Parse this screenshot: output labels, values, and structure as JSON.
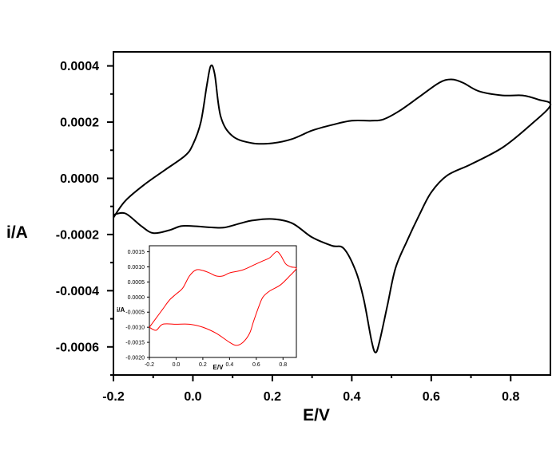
{
  "chart_data": [
    {
      "type": "line",
      "title": "",
      "xlabel": "E/V",
      "ylabel": "i/A",
      "xlim": [
        -0.2,
        0.9
      ],
      "ylim": [
        -0.0007,
        0.00045
      ],
      "x_ticks": [
        -0.2,
        0.0,
        0.2,
        0.4,
        0.6,
        0.8
      ],
      "x_tick_labels": [
        "-0.2",
        "0.0",
        "0.2",
        "0.4",
        "0.6",
        "0.8"
      ],
      "y_ticks": [
        0.0004,
        0.0002,
        0.0,
        -0.0002,
        -0.0004,
        -0.0006
      ],
      "y_tick_labels": [
        "0.0004",
        "0.0002",
        "0.0000",
        "-0.0002",
        "-0.0004",
        "-0.0006"
      ],
      "grid": false,
      "series": [
        {
          "color": "#000000",
          "x": [
            -0.2,
            -0.17,
            -0.12,
            -0.07,
            -0.02,
            0.0,
            0.02,
            0.035,
            0.045,
            0.055,
            0.07,
            0.1,
            0.15,
            0.2,
            0.25,
            0.3,
            0.35,
            0.4,
            0.45,
            0.48,
            0.52,
            0.57,
            0.62,
            0.65,
            0.68,
            0.72,
            0.78,
            0.83,
            0.87,
            0.9,
            0.85,
            0.78,
            0.7,
            0.64,
            0.6,
            0.57,
            0.54,
            0.51,
            0.49,
            0.47,
            0.46,
            0.45,
            0.43,
            0.41,
            0.38,
            0.35,
            0.3,
            0.25,
            0.2,
            0.15,
            0.12,
            0.08,
            0.05,
            0.0,
            -0.03,
            -0.06,
            -0.1,
            -0.13,
            -0.17,
            -0.2
          ],
          "y": [
            -0.00014,
            -8e-05,
            -2e-05,
            3e-05,
            8e-05,
            0.00012,
            0.0002,
            0.00033,
            0.0004,
            0.00037,
            0.00022,
            0.00015,
            0.000125,
            0.000125,
            0.00014,
            0.00017,
            0.00019,
            0.000205,
            0.000205,
            0.00021,
            0.00024,
            0.00029,
            0.00034,
            0.000352,
            0.00034,
            0.00031,
            0.000295,
            0.000295,
            0.00028,
            0.00026,
            0.00019,
            0.00011,
            5e-05,
            1e-05,
            -5e-05,
            -0.00013,
            -0.00022,
            -0.00032,
            -0.00045,
            -0.00058,
            -0.00062,
            -0.00058,
            -0.00043,
            -0.00033,
            -0.00025,
            -0.00024,
            -0.00021,
            -0.00016,
            -0.000145,
            -0.00015,
            -0.00016,
            -0.000175,
            -0.000175,
            -0.00017,
            -0.00017,
            -0.000185,
            -0.000195,
            -0.00017,
            -0.000125,
            -0.00013
          ]
        }
      ]
    },
    {
      "type": "line",
      "title": "",
      "xlabel": "E/V",
      "ylabel": "i/A",
      "xlim": [
        -0.2,
        0.9
      ],
      "ylim": [
        -0.002,
        0.0017
      ],
      "x_ticks": [
        -0.2,
        0.0,
        0.2,
        0.4,
        0.6,
        0.8
      ],
      "x_tick_labels": [
        "-0.2",
        "0.0",
        "0.2",
        "0.4",
        "0.6",
        "0.8"
      ],
      "y_ticks": [
        0.0015,
        0.001,
        0.0005,
        0.0,
        -0.0005,
        -0.001,
        -0.0015,
        -0.002
      ],
      "y_tick_labels": [
        "0.0015",
        "0.0010",
        "0.0005",
        "0.0000",
        "-0.0005",
        "-0.0010",
        "-0.0015",
        "-0.0020"
      ],
      "grid": false,
      "series": [
        {
          "color": "#ff0000",
          "x": [
            -0.2,
            -0.15,
            -0.1,
            -0.05,
            0.0,
            0.05,
            0.1,
            0.15,
            0.2,
            0.25,
            0.3,
            0.35,
            0.4,
            0.5,
            0.6,
            0.65,
            0.7,
            0.75,
            0.78,
            0.82,
            0.86,
            0.9,
            0.85,
            0.78,
            0.7,
            0.65,
            0.62,
            0.58,
            0.55,
            0.5,
            0.45,
            0.4,
            0.3,
            0.2,
            0.1,
            0.0,
            -0.1,
            -0.15,
            -0.2
          ],
          "y": [
            -0.001,
            -0.0007,
            -0.0004,
            -0.0001,
            0.0001,
            0.0003,
            0.0007,
            0.0009,
            0.00088,
            0.0008,
            0.0007,
            0.0007,
            0.0008,
            0.0009,
            0.0011,
            0.0012,
            0.0013,
            0.0015,
            0.0014,
            0.0011,
            0.001,
            0.00095,
            0.0007,
            0.0004,
            0.0002,
            0.0,
            -0.0003,
            -0.0008,
            -0.0012,
            -0.0015,
            -0.0016,
            -0.0015,
            -0.0012,
            -0.001,
            -0.0009,
            -0.0009,
            -0.0009,
            -0.0011,
            -0.001
          ]
        }
      ]
    }
  ]
}
